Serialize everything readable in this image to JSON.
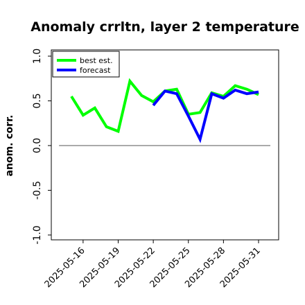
{
  "chart_data": {
    "type": "line",
    "title": "Anomaly crrltn, layer 2 temperature",
    "ylabel": "anom. corr.",
    "xlabel": "",
    "ylim": [
      -1.0,
      1.0
    ],
    "yticks": [
      "-1.0",
      "-0.5",
      "0.0",
      "0.5",
      "1.0"
    ],
    "ytick_values": [
      -1.0,
      -0.5,
      0.0,
      0.5,
      1.0
    ],
    "xlim": [
      -1.5,
      18.5
    ],
    "xtick_labels": [
      "2025-05-16",
      "2025-05-19",
      "2025-05-22",
      "2025-05-25",
      "2025-05-28",
      "2025-05-31"
    ],
    "xtick_values": [
      1,
      4,
      7,
      10,
      13,
      16
    ],
    "highlighted_xtick": "2025-05-22",
    "highlight_color": "#2e8b2e",
    "zero_line": 0.0,
    "legend_position": "top-left",
    "series": [
      {
        "name": "best est.",
        "color": "#00ff00",
        "x": [
          0,
          1,
          2,
          3,
          4,
          5,
          6,
          7,
          8,
          9,
          10,
          11,
          12,
          13,
          14,
          15,
          16
        ],
        "values": [
          0.55,
          0.34,
          0.42,
          0.21,
          0.16,
          0.72,
          0.56,
          0.49,
          0.61,
          0.63,
          0.35,
          0.37,
          0.59,
          0.55,
          0.67,
          0.63,
          0.57
        ]
      },
      {
        "name": "forecast",
        "color": "#0000ff",
        "x": [
          7,
          8,
          9,
          10,
          11,
          12,
          13,
          14,
          15,
          16
        ],
        "values": [
          0.45,
          0.61,
          0.58,
          0.33,
          0.07,
          0.58,
          0.53,
          0.62,
          0.58,
          0.6
        ]
      }
    ]
  }
}
